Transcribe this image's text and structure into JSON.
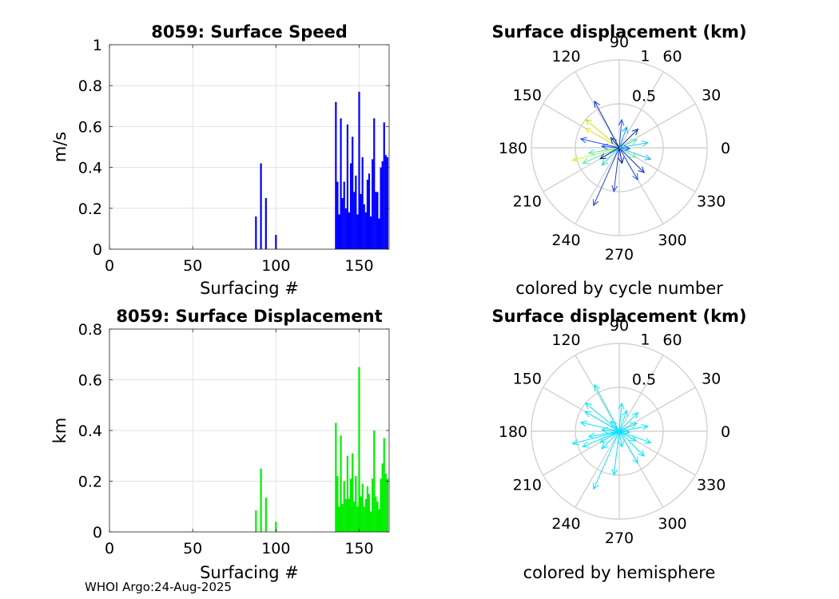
{
  "footer": "WHOI Argo:24-Aug-2025",
  "chart_data": [
    {
      "id": "speed",
      "type": "bar",
      "title": "8059: Surface Speed",
      "xlabel": "Surfacing #",
      "ylabel": "m/s",
      "xlim": [
        0,
        168
      ],
      "ylim": [
        0,
        1
      ],
      "xticks": [
        0,
        50,
        100,
        150
      ],
      "yticks": [
        0,
        0.2,
        0.4,
        0.6,
        0.8,
        1
      ],
      "yticklabels": [
        "0",
        "0.2",
        "0.4",
        "0.6",
        "0.8",
        "1"
      ],
      "color": "#0000ff",
      "x": [
        88,
        91,
        94,
        100,
        136,
        137,
        138,
        139,
        140,
        141,
        142,
        143,
        144,
        145,
        146,
        147,
        148,
        149,
        150,
        151,
        152,
        153,
        154,
        155,
        156,
        157,
        158,
        159,
        160,
        161,
        162,
        163,
        164,
        165,
        166,
        167
      ],
      "values": [
        0.16,
        0.42,
        0.25,
        0.07,
        0.72,
        0.33,
        0.17,
        0.64,
        0.25,
        0.33,
        0.2,
        0.61,
        0.18,
        0.42,
        0.55,
        0.28,
        0.36,
        0.17,
        0.77,
        0.27,
        0.45,
        0.22,
        0.18,
        0.34,
        0.37,
        0.16,
        0.44,
        0.64,
        0.28,
        0.28,
        0.15,
        0.4,
        0.43,
        0.62,
        0.46,
        0.45
      ]
    },
    {
      "id": "disp",
      "type": "bar",
      "title": "8059: Surface Displacement",
      "xlabel": "Surfacing #",
      "ylabel": "km",
      "xlim": [
        0,
        168
      ],
      "ylim": [
        0,
        0.8
      ],
      "xticks": [
        0,
        50,
        100,
        150
      ],
      "yticks": [
        0,
        0.2,
        0.4,
        0.6,
        0.8
      ],
      "yticklabels": [
        "0",
        "0.2",
        "0.4",
        "0.6",
        "0.8"
      ],
      "color": "#00ee00",
      "x": [
        88,
        91,
        94,
        100,
        136,
        137,
        138,
        139,
        140,
        141,
        142,
        143,
        144,
        145,
        146,
        147,
        148,
        149,
        150,
        151,
        152,
        153,
        154,
        155,
        156,
        157,
        158,
        159,
        160,
        161,
        162,
        163,
        164,
        165,
        166,
        167
      ],
      "values": [
        0.085,
        0.25,
        0.135,
        0.04,
        0.43,
        0.22,
        0.1,
        0.38,
        0.11,
        0.2,
        0.13,
        0.3,
        0.13,
        0.21,
        0.31,
        0.12,
        0.22,
        0.1,
        0.65,
        0.14,
        0.19,
        0.1,
        0.13,
        0.18,
        0.15,
        0.08,
        0.21,
        0.4,
        0.14,
        0.12,
        0.09,
        0.21,
        0.27,
        0.37,
        0.23,
        0.21
      ]
    },
    {
      "id": "polar1",
      "type": "polar-quiver",
      "title": "Surface displacement (km)",
      "caption": "colored by cycle number",
      "rmax": 1,
      "rtick_labels": [
        "0.5",
        "1"
      ],
      "angle_labels": [
        "0",
        "30",
        "60",
        "90",
        "120",
        "150",
        "180",
        "210",
        "240",
        "270",
        "300",
        "330"
      ],
      "arrows": [
        {
          "r": 0.6,
          "theta": 118,
          "color": "#0a2fd0"
        },
        {
          "r": 0.5,
          "theta": 140,
          "color": "#b9e61a"
        },
        {
          "r": 0.45,
          "theta": 150,
          "color": "#e8e83a"
        },
        {
          "r": 0.45,
          "theta": 167,
          "color": "#1a4cff"
        },
        {
          "r": 0.55,
          "theta": 195,
          "color": "#c8f52a"
        },
        {
          "r": 0.45,
          "theta": 203,
          "color": "#4de8a8"
        },
        {
          "r": 0.35,
          "theta": 190,
          "color": "#3fe8c0"
        },
        {
          "r": 0.72,
          "theta": 246,
          "color": "#1f3fd8"
        },
        {
          "r": 0.5,
          "theta": 263,
          "color": "#1f3fd8"
        },
        {
          "r": 0.42,
          "theta": 300,
          "color": "#1a4cff"
        },
        {
          "r": 0.4,
          "theta": 315,
          "color": "#0a2fd0"
        },
        {
          "r": 0.33,
          "theta": 10,
          "color": "#23c8f0"
        },
        {
          "r": 0.38,
          "theta": 340,
          "color": "#28b4f2"
        },
        {
          "r": 0.3,
          "theta": 45,
          "color": "#0028a8"
        },
        {
          "r": 0.32,
          "theta": 85,
          "color": "#1a4cff"
        },
        {
          "r": 0.25,
          "theta": 70,
          "color": "#0aa0ee"
        },
        {
          "r": 0.22,
          "theta": 25,
          "color": "#4de8a8"
        },
        {
          "r": 0.28,
          "theta": 225,
          "color": "#33d9c7"
        },
        {
          "r": 0.2,
          "theta": 175,
          "color": "#1a4cff"
        },
        {
          "r": 0.18,
          "theta": 280,
          "color": "#001d9a"
        },
        {
          "r": 0.15,
          "theta": 130,
          "color": "#0a2fd0"
        },
        {
          "r": 0.12,
          "theta": 355,
          "color": "#0a60e8"
        },
        {
          "r": 0.22,
          "theta": 330,
          "color": "#6ef08a"
        },
        {
          "r": 0.25,
          "theta": 210,
          "color": "#001d9a"
        }
      ]
    },
    {
      "id": "polar2",
      "type": "polar-quiver",
      "title": "Surface displacement (km)",
      "caption": "colored by hemisphere",
      "rmax": 1,
      "rtick_labels": [
        "0.5",
        "1"
      ],
      "angle_labels": [
        "0",
        "30",
        "60",
        "90",
        "120",
        "150",
        "180",
        "210",
        "240",
        "270",
        "300",
        "330"
      ],
      "color": "#00e5ff",
      "arrows": [
        {
          "r": 0.6,
          "theta": 118
        },
        {
          "r": 0.5,
          "theta": 140
        },
        {
          "r": 0.45,
          "theta": 150
        },
        {
          "r": 0.45,
          "theta": 167
        },
        {
          "r": 0.55,
          "theta": 195
        },
        {
          "r": 0.45,
          "theta": 203
        },
        {
          "r": 0.35,
          "theta": 190
        },
        {
          "r": 0.72,
          "theta": 246
        },
        {
          "r": 0.5,
          "theta": 263
        },
        {
          "r": 0.42,
          "theta": 300
        },
        {
          "r": 0.4,
          "theta": 315
        },
        {
          "r": 0.33,
          "theta": 10
        },
        {
          "r": 0.38,
          "theta": 340
        },
        {
          "r": 0.3,
          "theta": 45
        },
        {
          "r": 0.32,
          "theta": 85
        },
        {
          "r": 0.25,
          "theta": 70
        },
        {
          "r": 0.22,
          "theta": 25
        },
        {
          "r": 0.28,
          "theta": 225
        },
        {
          "r": 0.2,
          "theta": 175
        },
        {
          "r": 0.18,
          "theta": 280
        },
        {
          "r": 0.15,
          "theta": 130
        },
        {
          "r": 0.12,
          "theta": 355
        },
        {
          "r": 0.22,
          "theta": 330
        },
        {
          "r": 0.25,
          "theta": 210
        }
      ]
    }
  ]
}
